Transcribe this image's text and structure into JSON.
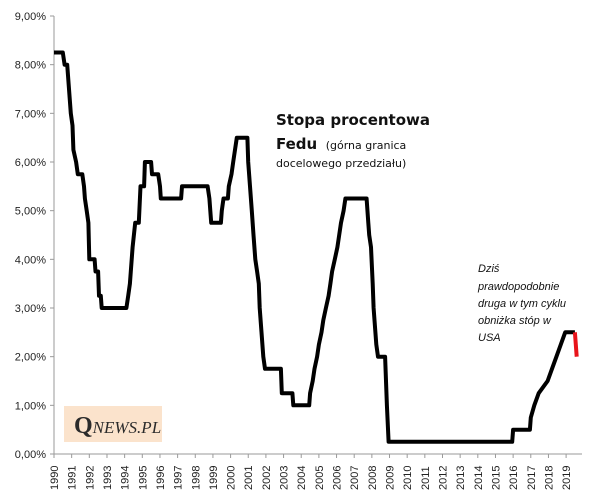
{
  "chart_data": {
    "type": "line",
    "title": "Stopa procentowa",
    "title_line2": "Fedu",
    "subtitle_part1": "(górna granica",
    "subtitle_part2": "docelowego przedziału)",
    "ylim": [
      0,
      9
    ],
    "yticks": [
      "0,00%",
      "1,00%",
      "2,00%",
      "3,00%",
      "4,00%",
      "5,00%",
      "6,00%",
      "7,00%",
      "8,00%",
      "9,00%"
    ],
    "xticks": [
      "1990",
      "1991",
      "1992",
      "1993",
      "1994",
      "1995",
      "1996",
      "1997",
      "1998",
      "1999",
      "2000",
      "2001",
      "2002",
      "2003",
      "2004",
      "2005",
      "2006",
      "2007",
      "2008",
      "2009",
      "2010",
      "2011",
      "2012",
      "2013",
      "2014",
      "2015",
      "2016",
      "2017",
      "2018",
      "2019"
    ],
    "xlim": [
      1990,
      2019.9
    ],
    "grid": false,
    "series": [
      {
        "color": "#000000",
        "points": [
          [
            1990.0,
            8.25
          ],
          [
            1990.5,
            8.25
          ],
          [
            1990.6,
            8.0
          ],
          [
            1990.75,
            8.0
          ],
          [
            1990.85,
            7.5
          ],
          [
            1990.95,
            7.0
          ],
          [
            1991.05,
            6.75
          ],
          [
            1991.1,
            6.25
          ],
          [
            1991.25,
            6.0
          ],
          [
            1991.35,
            5.75
          ],
          [
            1991.6,
            5.75
          ],
          [
            1991.7,
            5.5
          ],
          [
            1991.75,
            5.25
          ],
          [
            1991.85,
            5.0
          ],
          [
            1991.95,
            4.75
          ],
          [
            1992.0,
            4.0
          ],
          [
            1992.3,
            4.0
          ],
          [
            1992.35,
            3.75
          ],
          [
            1992.5,
            3.75
          ],
          [
            1992.55,
            3.25
          ],
          [
            1992.65,
            3.25
          ],
          [
            1992.7,
            3.0
          ],
          [
            1994.1,
            3.0
          ],
          [
            1994.2,
            3.25
          ],
          [
            1994.3,
            3.5
          ],
          [
            1994.35,
            3.75
          ],
          [
            1994.45,
            4.25
          ],
          [
            1994.6,
            4.75
          ],
          [
            1994.8,
            4.75
          ],
          [
            1994.9,
            5.5
          ],
          [
            1995.1,
            5.5
          ],
          [
            1995.15,
            6.0
          ],
          [
            1995.5,
            6.0
          ],
          [
            1995.55,
            5.75
          ],
          [
            1995.9,
            5.75
          ],
          [
            1996.0,
            5.5
          ],
          [
            1996.05,
            5.25
          ],
          [
            1997.2,
            5.25
          ],
          [
            1997.25,
            5.5
          ],
          [
            1998.7,
            5.5
          ],
          [
            1998.8,
            5.25
          ],
          [
            1998.85,
            5.0
          ],
          [
            1998.9,
            4.75
          ],
          [
            1999.45,
            4.75
          ],
          [
            1999.5,
            5.0
          ],
          [
            1999.6,
            5.25
          ],
          [
            1999.85,
            5.25
          ],
          [
            1999.9,
            5.5
          ],
          [
            2000.05,
            5.75
          ],
          [
            2000.15,
            6.0
          ],
          [
            2000.35,
            6.5
          ],
          [
            2000.95,
            6.5
          ],
          [
            2001.0,
            6.0
          ],
          [
            2001.1,
            5.5
          ],
          [
            2001.2,
            5.0
          ],
          [
            2001.3,
            4.5
          ],
          [
            2001.4,
            4.0
          ],
          [
            2001.5,
            3.75
          ],
          [
            2001.6,
            3.5
          ],
          [
            2001.65,
            3.0
          ],
          [
            2001.75,
            2.5
          ],
          [
            2001.85,
            2.0
          ],
          [
            2001.95,
            1.75
          ],
          [
            2002.85,
            1.75
          ],
          [
            2002.9,
            1.25
          ],
          [
            2003.5,
            1.25
          ],
          [
            2003.55,
            1.0
          ],
          [
            2004.45,
            1.0
          ],
          [
            2004.5,
            1.25
          ],
          [
            2004.65,
            1.5
          ],
          [
            2004.75,
            1.75
          ],
          [
            2004.9,
            2.0
          ],
          [
            2005.0,
            2.25
          ],
          [
            2005.15,
            2.5
          ],
          [
            2005.25,
            2.75
          ],
          [
            2005.4,
            3.0
          ],
          [
            2005.55,
            3.25
          ],
          [
            2005.65,
            3.5
          ],
          [
            2005.75,
            3.75
          ],
          [
            2005.9,
            4.0
          ],
          [
            2006.05,
            4.25
          ],
          [
            2006.15,
            4.5
          ],
          [
            2006.25,
            4.75
          ],
          [
            2006.4,
            5.0
          ],
          [
            2006.5,
            5.25
          ],
          [
            2007.7,
            5.25
          ],
          [
            2007.8,
            4.75
          ],
          [
            2007.85,
            4.5
          ],
          [
            2007.95,
            4.25
          ],
          [
            2008.05,
            3.5
          ],
          [
            2008.1,
            3.0
          ],
          [
            2008.25,
            2.25
          ],
          [
            2008.35,
            2.0
          ],
          [
            2008.75,
            2.0
          ],
          [
            2008.8,
            1.5
          ],
          [
            2008.85,
            1.0
          ],
          [
            2008.95,
            0.25
          ],
          [
            2015.95,
            0.25
          ],
          [
            2016.0,
            0.5
          ],
          [
            2016.95,
            0.5
          ],
          [
            2017.0,
            0.75
          ],
          [
            2017.2,
            1.0
          ],
          [
            2017.45,
            1.25
          ],
          [
            2017.95,
            1.5
          ],
          [
            2018.2,
            1.75
          ],
          [
            2018.45,
            2.0
          ],
          [
            2018.7,
            2.25
          ],
          [
            2018.95,
            2.5
          ],
          [
            2019.5,
            2.5
          ]
        ]
      },
      {
        "color": "#e8141b",
        "points": [
          [
            2019.5,
            2.5
          ],
          [
            2019.55,
            2.25
          ],
          [
            2019.6,
            2.0
          ]
        ]
      }
    ],
    "annotation": [
      "Dziś",
      "prawdopodobnie",
      "druga w tym cyklu",
      "obniżka stóp w",
      "USA"
    ]
  },
  "logo": {
    "q": "Q",
    "rest": "NEWS.PL",
    "background": "#fbe3cc"
  }
}
